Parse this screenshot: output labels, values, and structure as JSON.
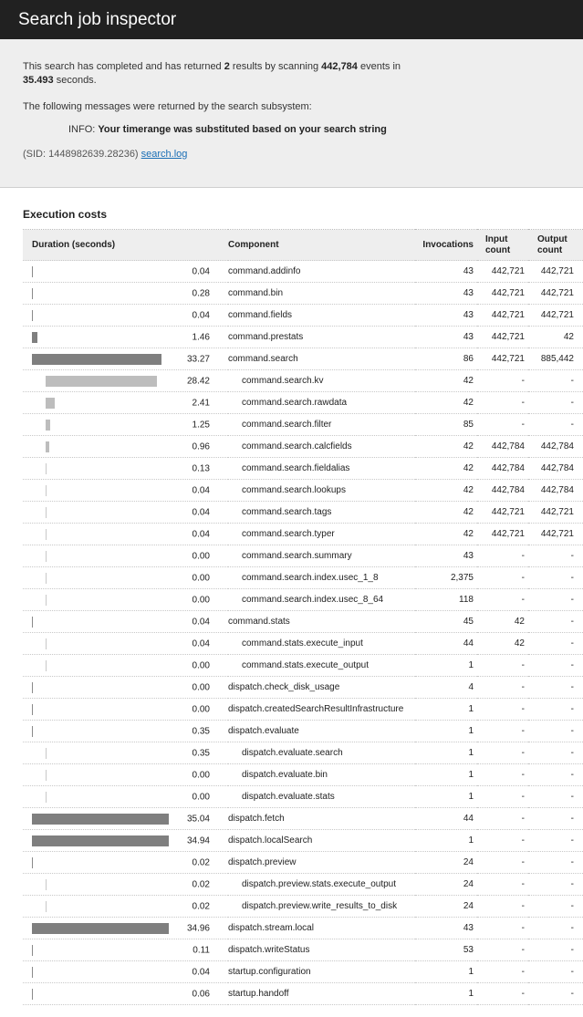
{
  "header": {
    "title": "Search job inspector"
  },
  "summary": {
    "line1_pre": "This search has completed and has returned ",
    "results": "2",
    "line1_mid": " results by scanning ",
    "events": "442,784",
    "line1_post": " events in",
    "seconds": "35.493",
    "line2_post": " seconds.",
    "messages_intro": "The following messages were returned by the search subsystem:",
    "info_label": "INFO: ",
    "info_message": "Your timerange was substituted based on your search string",
    "sid_text": "(SID: 1448982639.28236) ",
    "log_link": "search.log"
  },
  "section_title": "Execution costs",
  "table": {
    "headers": {
      "duration": "Duration (seconds)",
      "component": "Component",
      "invocations": "Invocations",
      "input_count": "Input count",
      "output_count": "Output count"
    },
    "max_duration": 35.04,
    "colors": {
      "bar_main": "#7f7f7f",
      "bar_sub": "#bdbdbd"
    },
    "rows": [
      {
        "duration": "0.04",
        "component": "command.addinfo",
        "invocations": "43",
        "input": "442,721",
        "output": "442,721",
        "sub": false
      },
      {
        "duration": "0.28",
        "component": "command.bin",
        "invocations": "43",
        "input": "442,721",
        "output": "442,721",
        "sub": false
      },
      {
        "duration": "0.04",
        "component": "command.fields",
        "invocations": "43",
        "input": "442,721",
        "output": "442,721",
        "sub": false
      },
      {
        "duration": "1.46",
        "component": "command.prestats",
        "invocations": "43",
        "input": "442,721",
        "output": "42",
        "sub": false
      },
      {
        "duration": "33.27",
        "component": "command.search",
        "invocations": "86",
        "input": "442,721",
        "output": "885,442",
        "sub": false
      },
      {
        "duration": "28.42",
        "component": "command.search.kv",
        "invocations": "42",
        "input": "-",
        "output": "-",
        "sub": true
      },
      {
        "duration": "2.41",
        "component": "command.search.rawdata",
        "invocations": "42",
        "input": "-",
        "output": "-",
        "sub": true
      },
      {
        "duration": "1.25",
        "component": "command.search.filter",
        "invocations": "85",
        "input": "-",
        "output": "-",
        "sub": true
      },
      {
        "duration": "0.96",
        "component": "command.search.calcfields",
        "invocations": "42",
        "input": "442,784",
        "output": "442,784",
        "sub": true
      },
      {
        "duration": "0.13",
        "component": "command.search.fieldalias",
        "invocations": "42",
        "input": "442,784",
        "output": "442,784",
        "sub": true
      },
      {
        "duration": "0.04",
        "component": "command.search.lookups",
        "invocations": "42",
        "input": "442,784",
        "output": "442,784",
        "sub": true
      },
      {
        "duration": "0.04",
        "component": "command.search.tags",
        "invocations": "42",
        "input": "442,721",
        "output": "442,721",
        "sub": true
      },
      {
        "duration": "0.04",
        "component": "command.search.typer",
        "invocations": "42",
        "input": "442,721",
        "output": "442,721",
        "sub": true
      },
      {
        "duration": "0.00",
        "component": "command.search.summary",
        "invocations": "43",
        "input": "-",
        "output": "-",
        "sub": true
      },
      {
        "duration": "0.00",
        "component": "command.search.index.usec_1_8",
        "invocations": "2,375",
        "input": "-",
        "output": "-",
        "sub": true
      },
      {
        "duration": "0.00",
        "component": "command.search.index.usec_8_64",
        "invocations": "118",
        "input": "-",
        "output": "-",
        "sub": true
      },
      {
        "duration": "0.04",
        "component": "command.stats",
        "invocations": "45",
        "input": "42",
        "output": "-",
        "sub": false
      },
      {
        "duration": "0.04",
        "component": "command.stats.execute_input",
        "invocations": "44",
        "input": "42",
        "output": "-",
        "sub": true
      },
      {
        "duration": "0.00",
        "component": "command.stats.execute_output",
        "invocations": "1",
        "input": "-",
        "output": "-",
        "sub": true
      },
      {
        "duration": "0.00",
        "component": "dispatch.check_disk_usage",
        "invocations": "4",
        "input": "-",
        "output": "-",
        "sub": false
      },
      {
        "duration": "0.00",
        "component": "dispatch.createdSearchResultInfrastructure",
        "invocations": "1",
        "input": "-",
        "output": "-",
        "sub": false
      },
      {
        "duration": "0.35",
        "component": "dispatch.evaluate",
        "invocations": "1",
        "input": "-",
        "output": "-",
        "sub": false
      },
      {
        "duration": "0.35",
        "component": "dispatch.evaluate.search",
        "invocations": "1",
        "input": "-",
        "output": "-",
        "sub": true
      },
      {
        "duration": "0.00",
        "component": "dispatch.evaluate.bin",
        "invocations": "1",
        "input": "-",
        "output": "-",
        "sub": true
      },
      {
        "duration": "0.00",
        "component": "dispatch.evaluate.stats",
        "invocations": "1",
        "input": "-",
        "output": "-",
        "sub": true
      },
      {
        "duration": "35.04",
        "component": "dispatch.fetch",
        "invocations": "44",
        "input": "-",
        "output": "-",
        "sub": false
      },
      {
        "duration": "34.94",
        "component": "dispatch.localSearch",
        "invocations": "1",
        "input": "-",
        "output": "-",
        "sub": false
      },
      {
        "duration": "0.02",
        "component": "dispatch.preview",
        "invocations": "24",
        "input": "-",
        "output": "-",
        "sub": false
      },
      {
        "duration": "0.02",
        "component": "dispatch.preview.stats.execute_output",
        "invocations": "24",
        "input": "-",
        "output": "-",
        "sub": true
      },
      {
        "duration": "0.02",
        "component": "dispatch.preview.write_results_to_disk",
        "invocations": "24",
        "input": "-",
        "output": "-",
        "sub": true
      },
      {
        "duration": "34.96",
        "component": "dispatch.stream.local",
        "invocations": "43",
        "input": "-",
        "output": "-",
        "sub": false
      },
      {
        "duration": "0.11",
        "component": "dispatch.writeStatus",
        "invocations": "53",
        "input": "-",
        "output": "-",
        "sub": false
      },
      {
        "duration": "0.04",
        "component": "startup.configuration",
        "invocations": "1",
        "input": "-",
        "output": "-",
        "sub": false
      },
      {
        "duration": "0.06",
        "component": "startup.handoff",
        "invocations": "1",
        "input": "-",
        "output": "-",
        "sub": false
      }
    ]
  }
}
